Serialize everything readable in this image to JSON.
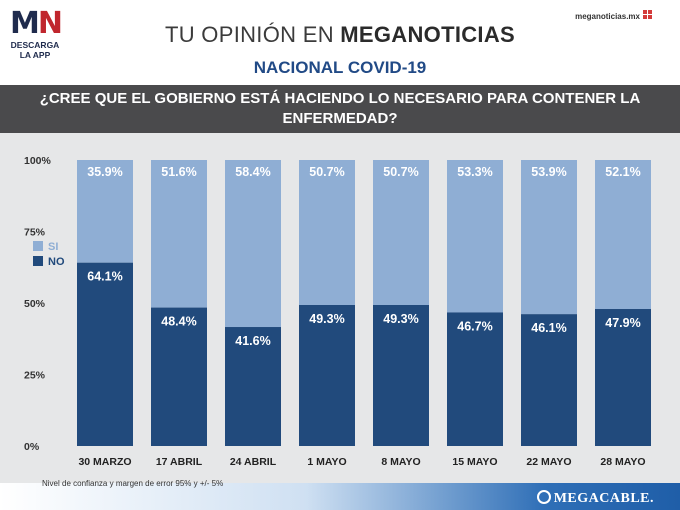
{
  "logo": {
    "mark_m": "M",
    "mark_n": "N",
    "line1": "DESCARGA",
    "line2": "LA APP"
  },
  "site": "meganoticias.mx",
  "header": {
    "title_light": "TU OPINIÓN EN ",
    "title_bold": "MEGANOTICIAS",
    "subtitle": "NACIONAL COVID-19"
  },
  "question": "¿CREE QUE EL GOBIERNO ESTÁ HACIENDO LO NECESARIO PARA CONTENER LA ENFERMEDAD?",
  "footnote": "Nivel de confianza y margen de error 95% y +/- 5%",
  "brand": "MEGACABLE.",
  "colors": {
    "si": "#8faed4",
    "no": "#214a7c",
    "background": "#e6e7e8"
  },
  "chart_data": {
    "type": "bar",
    "stacked": true,
    "categories": [
      "30 MARZO",
      "17 ABRIL",
      "24 ABRIL",
      "1 MAYO",
      "8 MAYO",
      "15 MAYO",
      "22 MAYO",
      "28 MAYO"
    ],
    "series": [
      {
        "name": "NO",
        "values": [
          64.1,
          48.4,
          41.6,
          49.3,
          49.3,
          46.7,
          46.1,
          47.9
        ],
        "labels": [
          "64.1%",
          "48.4%",
          "41.6%",
          "49.3%",
          "49.3%",
          "46.7%",
          "46.1%",
          "47.9%"
        ]
      },
      {
        "name": "SI",
        "values": [
          35.9,
          51.6,
          58.4,
          50.7,
          50.7,
          53.3,
          53.9,
          52.1
        ],
        "labels": [
          "35.9%",
          "51.6%",
          "58.4%",
          "50.7%",
          "50.7%",
          "53.3%",
          "53.9%",
          "52.1%"
        ]
      }
    ],
    "yticks": [
      "100%",
      "75%",
      "50%",
      "25%",
      "0%"
    ],
    "ylim": [
      0,
      100
    ],
    "legend": [
      "SI",
      "NO"
    ],
    "legend_position": "left, below 75%"
  }
}
